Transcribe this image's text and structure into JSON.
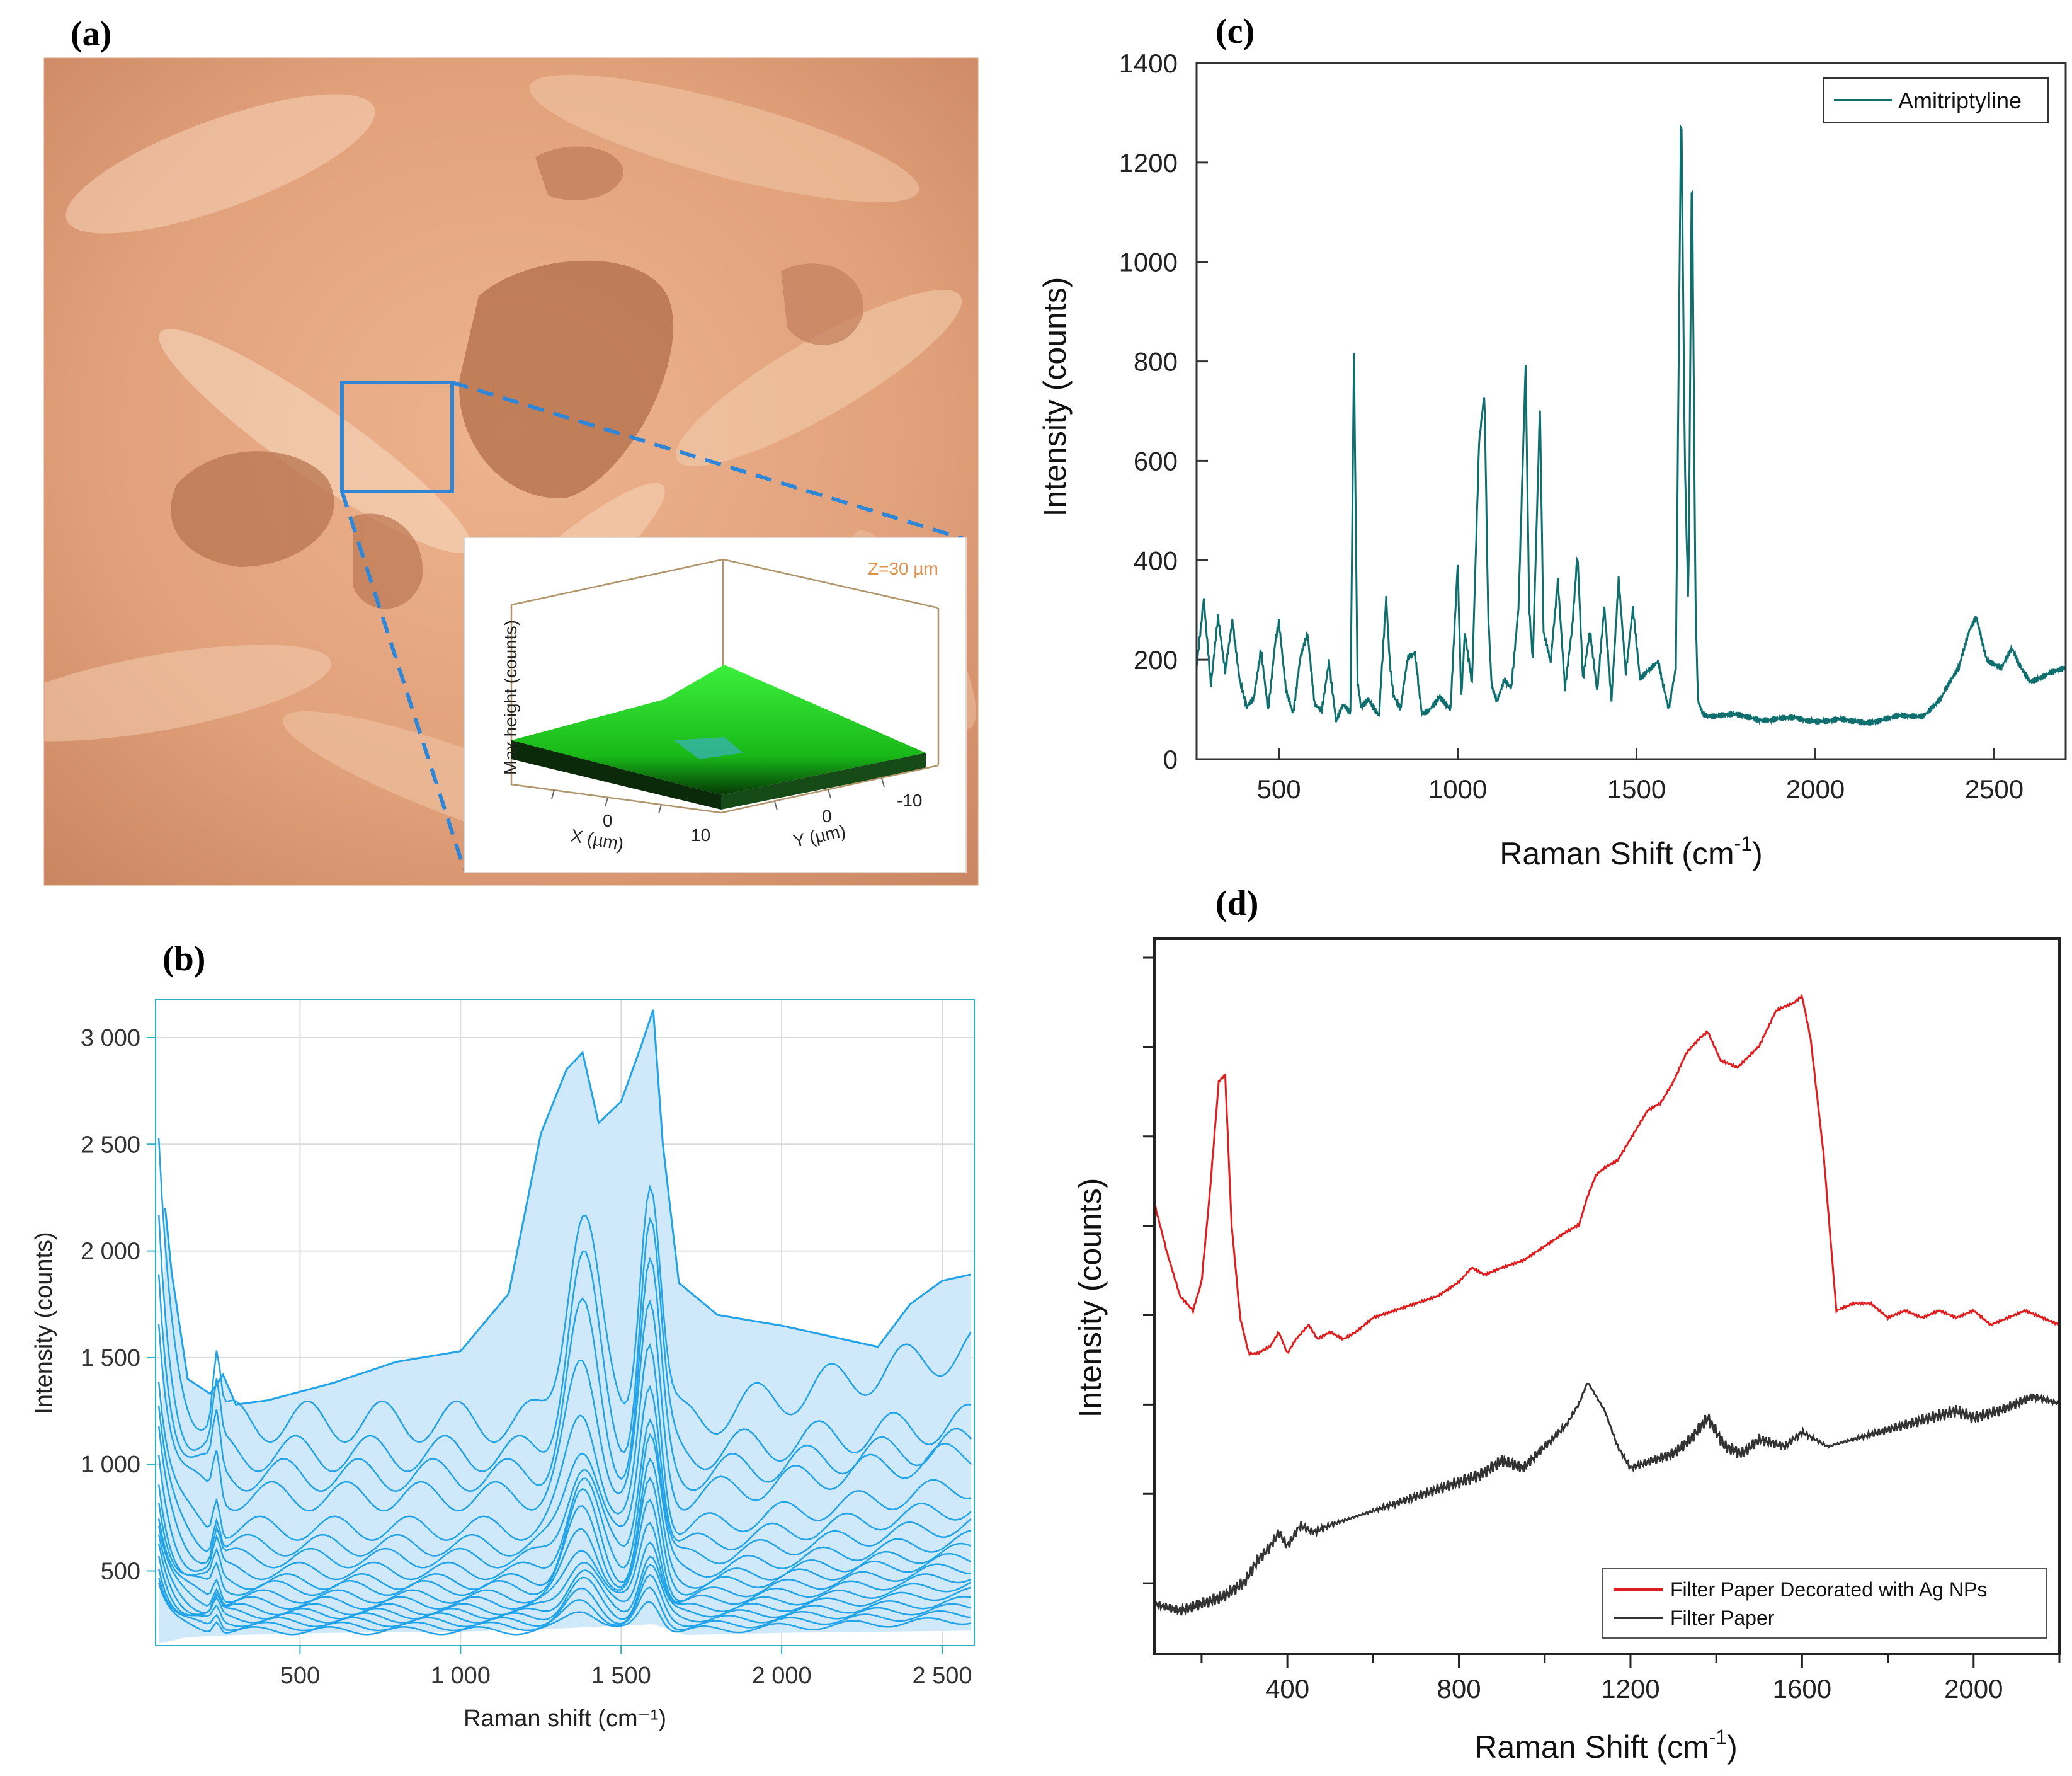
{
  "panels": {
    "a": "(a)",
    "b": "(b)",
    "c": "(c)",
    "d": "(d)"
  },
  "colors": {
    "photo_base": "#e6a67e",
    "photo_dark": "#b06a44",
    "photo_light": "#f6d2b6",
    "roi_box": "#2f86d6",
    "inset_surface": "#27e027",
    "series_b": "#22a3e8",
    "band_b": "#cfe9fb",
    "series_c": "#0f6e6e",
    "series_d_red": "#e11d1d",
    "series_d_black": "#333333"
  },
  "inset": {
    "z_label": "Z=30 µm",
    "zlabel": "Max height (counts)",
    "xlabel": "X (µm)",
    "ylabel": "Y (µm)",
    "x_ticks": [
      "0",
      "10"
    ],
    "y_ticks": [
      "0",
      "-10"
    ]
  },
  "chart_data": [
    {
      "panel": "b",
      "type": "line",
      "xlabel": "Raman shift (cm⁻¹)",
      "ylabel": "Intensity (counts)",
      "xlim": [
        50,
        2600
      ],
      "ylim": [
        150,
        3180
      ],
      "x_ticks": [
        500,
        1000,
        1500,
        2000,
        2500
      ],
      "x_tick_labels": [
        "500",
        "1 000",
        "1 500",
        "2 000",
        "2 500"
      ],
      "y_ticks": [
        500,
        1000,
        1500,
        2000,
        2500,
        3000
      ],
      "y_tick_labels": [
        "500",
        "1 000",
        "1 500",
        "2 000",
        "2 500",
        "3 000"
      ],
      "grid": true,
      "envelope_upper": {
        "x": [
          80,
          100,
          150,
          220,
          260,
          300,
          400,
          600,
          800,
          1000,
          1150,
          1250,
          1330,
          1380,
          1430,
          1500,
          1560,
          1600,
          1630,
          1680,
          1800,
          2000,
          2150,
          2300,
          2400,
          2500,
          2590
        ],
        "y": [
          2200,
          1900,
          1400,
          1330,
          1420,
          1280,
          1300,
          1380,
          1480,
          1530,
          1800,
          2550,
          2850,
          2930,
          2600,
          2700,
          2950,
          3130,
          2500,
          1850,
          1700,
          1650,
          1600,
          1550,
          1750,
          1860,
          1890
        ]
      },
      "envelope_lower": {
        "x": [
          60,
          150,
          300,
          600,
          1000,
          1300,
          1600,
          1700,
          2000,
          2590
        ],
        "y": [
          160,
          190,
          200,
          210,
          215,
          230,
          250,
          200,
          210,
          220
        ]
      },
      "representative_series": [
        {
          "base": 1200,
          "peak1": 2200,
          "peak2": 2380,
          "tail": 1550
        },
        {
          "base": 1050,
          "peak1": 1950,
          "peak2": 2150,
          "tail": 1200
        },
        {
          "base": 950,
          "peak1": 1700,
          "peak2": 1900,
          "tail": 1100
        },
        {
          "base": 850,
          "peak1": 1450,
          "peak2": 1700,
          "tail": 1050
        },
        {
          "base": 700,
          "peak1": 1250,
          "peak2": 1550,
          "tail": 900
        },
        {
          "base": 620,
          "peak1": 1100,
          "peak2": 1400,
          "tail": 800
        },
        {
          "base": 560,
          "peak1": 1000,
          "peak2": 1250,
          "tail": 720
        },
        {
          "base": 500,
          "peak1": 920,
          "peak2": 1150,
          "tail": 650
        },
        {
          "base": 450,
          "peak1": 850,
          "peak2": 1000,
          "tail": 600
        },
        {
          "base": 420,
          "peak1": 780,
          "peak2": 900,
          "tail": 560
        },
        {
          "base": 380,
          "peak1": 700,
          "peak2": 820,
          "tail": 520
        },
        {
          "base": 350,
          "peak1": 620,
          "peak2": 740,
          "tail": 480
        },
        {
          "base": 320,
          "peak1": 560,
          "peak2": 660,
          "tail": 440
        },
        {
          "base": 300,
          "peak1": 500,
          "peak2": 580,
          "tail": 400
        },
        {
          "base": 280,
          "peak1": 450,
          "peak2": 520,
          "tail": 360
        },
        {
          "base": 260,
          "peak1": 400,
          "peak2": 460,
          "tail": 330
        },
        {
          "base": 240,
          "peak1": 360,
          "peak2": 410,
          "tail": 300
        },
        {
          "base": 220,
          "peak1": 320,
          "peak2": 360,
          "tail": 270
        }
      ]
    },
    {
      "panel": "c",
      "type": "line",
      "xlabel": "Raman Shift (cm",
      "xlabel_sup": "-1",
      "xlabel_close": ")",
      "ylabel": "Intensity (counts)",
      "xlim": [
        270,
        2700
      ],
      "ylim": [
        0,
        1400
      ],
      "x_ticks": [
        500,
        1000,
        1500,
        2000,
        2500
      ],
      "y_ticks": [
        0,
        200,
        400,
        600,
        800,
        1000,
        1200,
        1400
      ],
      "legend": "top-right",
      "series": [
        {
          "name": "Amitriptyline",
          "x": [
            270,
            290,
            310,
            330,
            350,
            370,
            390,
            410,
            430,
            450,
            470,
            490,
            500,
            520,
            540,
            560,
            580,
            600,
            620,
            640,
            660,
            680,
            700,
            710,
            720,
            730,
            750,
            780,
            800,
            810,
            820,
            840,
            860,
            880,
            900,
            920,
            950,
            980,
            1000,
            1010,
            1020,
            1040,
            1060,
            1075,
            1085,
            1095,
            1110,
            1130,
            1150,
            1170,
            1190,
            1200,
            1210,
            1230,
            1240,
            1260,
            1280,
            1300,
            1320,
            1335,
            1350,
            1370,
            1390,
            1410,
            1430,
            1450,
            1470,
            1490,
            1510,
            1530,
            1560,
            1590,
            1610,
            1625,
            1635,
            1645,
            1655,
            1665,
            1672,
            1685,
            1700,
            1800,
            1900,
            2000,
            2100,
            2200,
            2300,
            2350,
            2400,
            2430,
            2450,
            2480,
            2520,
            2550,
            2570,
            2600,
            2650,
            2700
          ],
          "y": [
            180,
            320,
            150,
            290,
            180,
            280,
            160,
            100,
            120,
            220,
            100,
            240,
            280,
            140,
            90,
            200,
            250,
            110,
            100,
            200,
            80,
            110,
            90,
            810,
            150,
            100,
            120,
            90,
            330,
            200,
            130,
            100,
            200,
            210,
            90,
            100,
            130,
            100,
            390,
            120,
            250,
            150,
            640,
            740,
            300,
            150,
            120,
            160,
            140,
            300,
            790,
            300,
            200,
            710,
            260,
            200,
            360,
            140,
            260,
            410,
            160,
            260,
            140,
            310,
            120,
            360,
            170,
            300,
            160,
            180,
            200,
            100,
            180,
            1340,
            600,
            300,
            1230,
            300,
            120,
            95,
            90,
            85,
            80,
            80,
            75,
            80,
            90,
            120,
            180,
            260,
            290,
            200,
            180,
            220,
            190,
            160,
            170,
            180
          ]
        }
      ]
    },
    {
      "panel": "d",
      "type": "line",
      "xlabel": "Raman Shift (cm",
      "xlabel_sup": "-1",
      "xlabel_close": ")",
      "ylabel": "Intensity (counts)",
      "xlim": [
        90,
        2200
      ],
      "ylim": [
        0,
        1000
      ],
      "x_ticks": [
        400,
        800,
        1200,
        1600,
        2000
      ],
      "y_tick_labels_shown": false,
      "legend": "bottom-right",
      "series": [
        {
          "name": "Filter Paper Decorated with Ag NPs",
          "x": [
            90,
            120,
            150,
            180,
            200,
            220,
            240,
            255,
            270,
            290,
            310,
            330,
            360,
            380,
            400,
            420,
            450,
            470,
            500,
            530,
            560,
            600,
            650,
            700,
            750,
            800,
            830,
            860,
            900,
            950,
            1000,
            1050,
            1080,
            1100,
            1120,
            1140,
            1170,
            1200,
            1240,
            1270,
            1300,
            1330,
            1360,
            1380,
            1410,
            1450,
            1500,
            1540,
            1580,
            1600,
            1620,
            1650,
            1680,
            1720,
            1760,
            1800,
            1840,
            1880,
            1920,
            1960,
            2000,
            2040,
            2080,
            2120,
            2160,
            2200
          ],
          "y": [
            630,
            560,
            500,
            480,
            520,
            650,
            800,
            810,
            600,
            470,
            420,
            420,
            430,
            450,
            420,
            440,
            460,
            440,
            450,
            440,
            450,
            470,
            480,
            490,
            500,
            520,
            540,
            530,
            540,
            550,
            570,
            590,
            600,
            640,
            670,
            680,
            690,
            720,
            760,
            770,
            800,
            840,
            860,
            870,
            830,
            820,
            850,
            900,
            910,
            920,
            860,
            700,
            480,
            490,
            490,
            470,
            480,
            470,
            480,
            470,
            480,
            460,
            470,
            480,
            470,
            460
          ]
        },
        {
          "name": "Filter Paper",
          "x": [
            90,
            150,
            200,
            250,
            300,
            330,
            360,
            380,
            400,
            430,
            460,
            500,
            600,
            700,
            800,
            850,
            900,
            950,
            1000,
            1050,
            1080,
            1100,
            1120,
            1140,
            1170,
            1200,
            1250,
            1300,
            1340,
            1380,
            1420,
            1460,
            1500,
            1560,
            1600,
            1660,
            1720,
            1780,
            1840,
            1900,
            1960,
            2000,
            2060,
            2100,
            2140,
            2200
          ],
          "y": [
            70,
            60,
            70,
            80,
            100,
            130,
            150,
            170,
            150,
            180,
            170,
            180,
            200,
            220,
            240,
            250,
            270,
            260,
            290,
            320,
            350,
            380,
            360,
            340,
            290,
            260,
            270,
            280,
            300,
            330,
            290,
            280,
            300,
            290,
            310,
            290,
            300,
            310,
            320,
            330,
            340,
            330,
            340,
            350,
            360,
            350
          ]
        }
      ]
    }
  ]
}
